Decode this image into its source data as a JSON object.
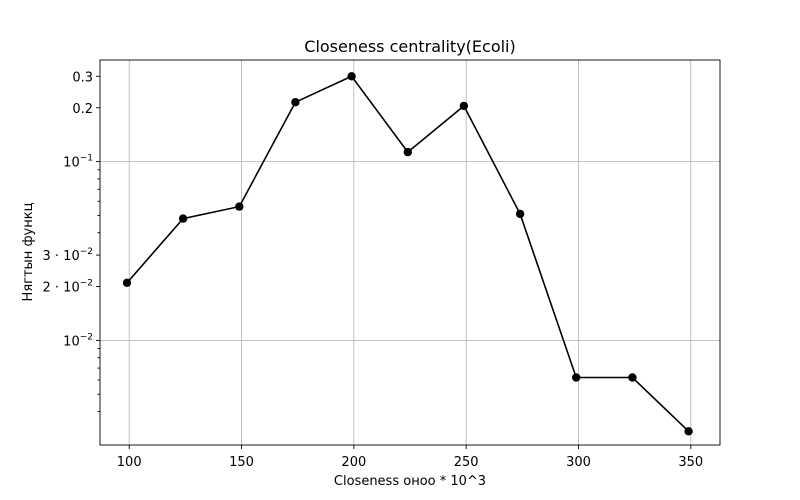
{
  "chart_data": {
    "type": "line",
    "title": "Closeness centrality(Ecoli)",
    "xlabel": "Closeness онoo * 10^3",
    "ylabel": "Нягтын функц",
    "xlim": [
      87,
      363
    ],
    "ylim": [
      0.0026,
      0.37
    ],
    "yscale": "log",
    "grid": true,
    "x_ticks": [
      {
        "value": 100,
        "label": "100"
      },
      {
        "value": 150,
        "label": "150"
      },
      {
        "value": 200,
        "label": "200"
      },
      {
        "value": 250,
        "label": "250"
      },
      {
        "value": 300,
        "label": "300"
      },
      {
        "value": 350,
        "label": "350"
      }
    ],
    "y_ticks": [
      {
        "value": 0.3,
        "label": "0.3",
        "grid": false
      },
      {
        "value": 0.2,
        "label": "0.2",
        "grid": false
      },
      {
        "value": 0.1,
        "label": "10",
        "sup": "−1",
        "grid": true
      },
      {
        "value": 0.03,
        "label": "3 · 10",
        "sup": "−2",
        "grid": false
      },
      {
        "value": 0.02,
        "label": "2 · 10",
        "sup": "−2",
        "grid": false
      },
      {
        "value": 0.01,
        "label": "10",
        "sup": "−2",
        "grid": true
      }
    ],
    "y_minor_ticks": [
      0.004,
      0.005,
      0.006,
      0.007,
      0.008,
      0.009,
      0.04,
      0.05,
      0.06,
      0.07,
      0.08,
      0.09
    ],
    "series": [
      {
        "color": "#000000",
        "x": [
          99,
          124,
          149,
          174,
          199,
          224,
          249,
          274,
          299,
          324,
          349
        ],
        "y": [
          0.021,
          0.048,
          0.056,
          0.215,
          0.3,
          0.113,
          0.205,
          0.051,
          0.0062,
          0.0062,
          0.0031
        ]
      }
    ]
  }
}
